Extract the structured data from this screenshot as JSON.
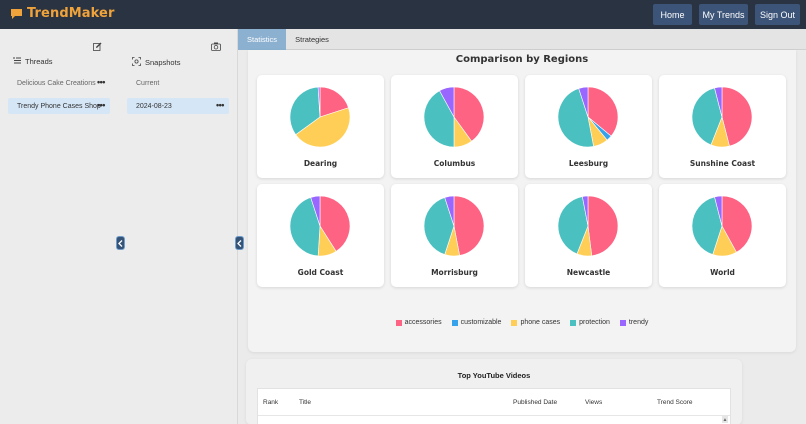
{
  "app": {
    "name": "TrendMaker"
  },
  "nav": {
    "home": "Home",
    "my_trends": "My Trends",
    "sign_out": "Sign Out"
  },
  "sidebar": {
    "threads_label": "Threads",
    "snapshots_label": "Snapshots",
    "threads": [
      {
        "label": "Delicious Cake Creations",
        "selected": false
      },
      {
        "label": "Trendy Phone Cases Shop",
        "selected": true
      }
    ],
    "snapshots": [
      {
        "label": "Current",
        "selected": false
      },
      {
        "label": "2024-08-23",
        "selected": true
      }
    ],
    "more": "•••"
  },
  "tabs": [
    {
      "label": "Statistics",
      "active": true
    },
    {
      "label": "Strategies",
      "active": false
    }
  ],
  "chart_data": {
    "type": "pie",
    "title": "Comparison by Regions",
    "legend_position": "bottom",
    "categories": [
      "accessories",
      "customizable",
      "phone cases",
      "protection",
      "trendy"
    ],
    "colors": [
      "#ff6384",
      "#36a2eb",
      "#ffce56",
      "#4bc0c0",
      "#9966ff"
    ],
    "regions": [
      {
        "name": "Dearing",
        "values": [
          20,
          0,
          45,
          34,
          1
        ]
      },
      {
        "name": "Columbus",
        "values": [
          40,
          0,
          10,
          42,
          8
        ]
      },
      {
        "name": "Leesburg",
        "values": [
          36,
          3,
          8,
          48,
          5
        ]
      },
      {
        "name": "Sunshine Coast",
        "values": [
          46,
          0,
          10,
          40,
          4
        ]
      },
      {
        "name": "Gold Coast",
        "values": [
          41,
          0,
          10,
          44,
          5
        ]
      },
      {
        "name": "Morrisburg",
        "values": [
          47,
          0,
          8,
          40,
          5
        ]
      },
      {
        "name": "Newcastle",
        "values": [
          48,
          0,
          8,
          41,
          3
        ]
      },
      {
        "name": "World",
        "values": [
          42,
          0,
          13,
          41,
          4
        ]
      }
    ]
  },
  "youtube": {
    "title": "Top YouTube Videos",
    "columns": [
      "Rank",
      "Title",
      "Published Date",
      "Views",
      "Trend Score"
    ],
    "scroll_up": "▲"
  }
}
